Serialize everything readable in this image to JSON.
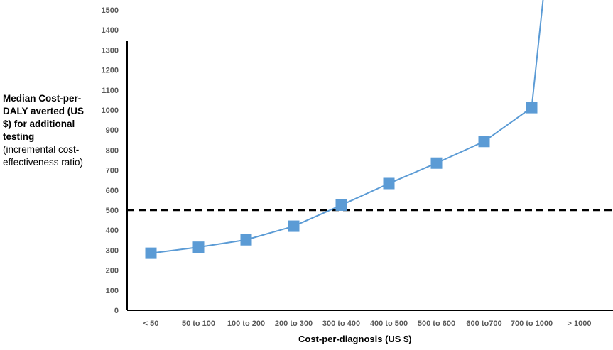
{
  "chart_data": {
    "type": "line",
    "title": "",
    "xlabel": "Cost-per-diagnosis (US $)",
    "ylabel_bold": "Median Cost-per-DALY averted (US $) for additional testing",
    "ylabel_normal": "(incremental cost-effectiveness ratio)",
    "categories": [
      "< 50",
      "50 to 100",
      "100 to 200",
      "200 to 300",
      "300 to 400",
      "400 to 500",
      "500 to 600",
      "600 to700",
      "700 to 1000",
      "> 1000"
    ],
    "series": [
      {
        "values": [
          285,
          315,
          352,
          420,
          525,
          633,
          735,
          843,
          1012,
          null
        ],
        "color": "#5b9bd5",
        "beyond_axis_at": "> 1000"
      }
    ],
    "reference_line": {
      "y": 500,
      "style": "dashed",
      "color": "#000000"
    },
    "ylim": [
      0,
      1500
    ],
    "yticks": [
      0,
      100,
      200,
      300,
      400,
      500,
      600,
      700,
      800,
      900,
      1000,
      1100,
      1200,
      1300,
      1400,
      1500
    ],
    "grid": false,
    "legend": "none"
  }
}
